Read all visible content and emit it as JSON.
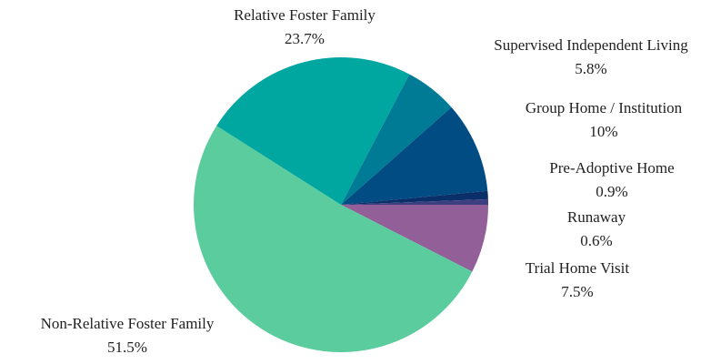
{
  "chart_data": {
    "type": "pie",
    "categories": [
      "Trial Home Visit",
      "Non-Relative Foster Family",
      "Relative Foster Family",
      "Supervised Independent Living",
      "Group Home / Institution",
      "Pre-Adoptive Home",
      "Runaway"
    ],
    "values": [
      7.5,
      51.5,
      23.7,
      5.8,
      10,
      0.9,
      0.6
    ],
    "value_labels": [
      "7.5%",
      "51.5%",
      "23.7%",
      "5.8%",
      "10%",
      "0.9%",
      "0.6%"
    ],
    "colors": [
      "#925f99",
      "#5bcc9e",
      "#00a6a0",
      "#007b95",
      "#004c83",
      "#0b2f69",
      "#3c3f80"
    ]
  }
}
